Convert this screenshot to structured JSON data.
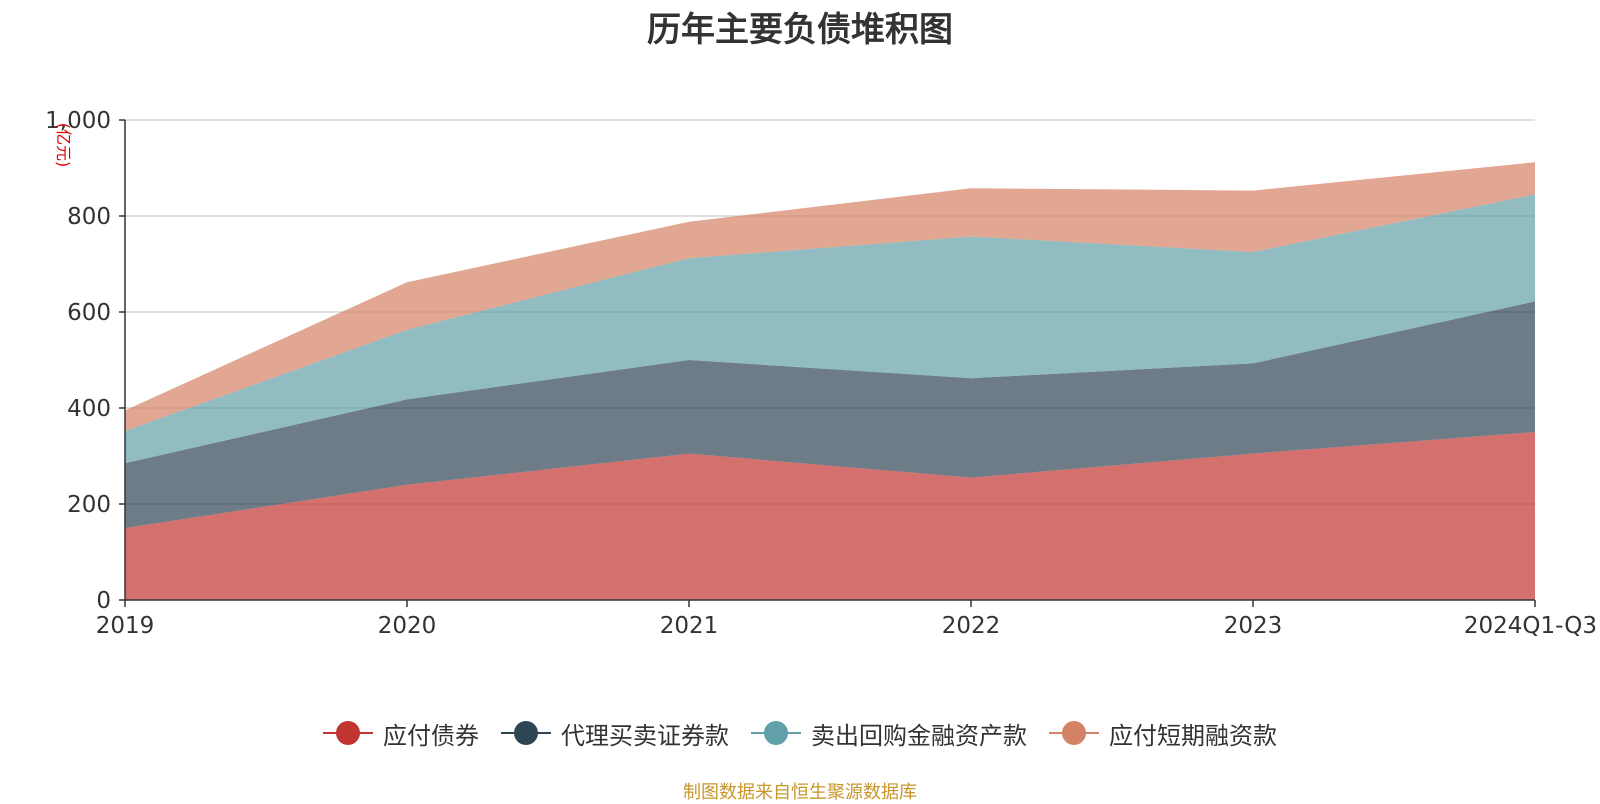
{
  "chart_data": {
    "type": "area",
    "stacked": true,
    "title": "历年主要负债堆积图",
    "ylabel": "(亿元)",
    "xlabel": "",
    "categories": [
      "2019",
      "2020",
      "2021",
      "2022",
      "2023",
      "2024Q1-Q3"
    ],
    "ylim": [
      0,
      1000
    ],
    "yticks": [
      "0",
      "200",
      "400",
      "600",
      "800",
      "1,000"
    ],
    "ytick_values": [
      0,
      200,
      400,
      600,
      800,
      1000
    ],
    "grid": true,
    "legend_position": "bottom",
    "series": [
      {
        "name": "应付债券",
        "color": "#c23531",
        "values": [
          150,
          240,
          305,
          255,
          305,
          350
        ]
      },
      {
        "name": "代理买卖证券款",
        "color": "#2f4554",
        "values": [
          135,
          178,
          195,
          207,
          188,
          272
        ]
      },
      {
        "name": "卖出回购金融资产款",
        "color": "#61a0a8",
        "values": [
          67,
          145,
          212,
          295,
          232,
          223
        ]
      },
      {
        "name": "应付短期融资款",
        "color": "#d48265",
        "values": [
          43,
          99,
          76,
          101,
          128,
          67
        ]
      }
    ],
    "source_note": "制图数据来自恒生聚源数据库"
  }
}
